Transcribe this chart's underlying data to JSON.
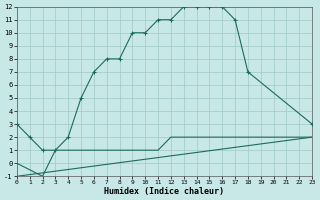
{
  "xlabel": "Humidex (Indice chaleur)",
  "bg_color": "#c8e8e8",
  "grid_color": "#a0c8c8",
  "line_color": "#1a6b5a",
  "xlim": [
    0,
    23
  ],
  "ylim": [
    -1,
    12
  ],
  "xticks": [
    0,
    1,
    2,
    3,
    4,
    5,
    6,
    7,
    8,
    9,
    10,
    11,
    12,
    13,
    14,
    15,
    16,
    17,
    18,
    19,
    20,
    21,
    22,
    23
  ],
  "yticks": [
    -1,
    0,
    1,
    2,
    3,
    4,
    5,
    6,
    7,
    8,
    9,
    10,
    11,
    12
  ],
  "curve1_x": [
    0,
    1,
    2,
    3,
    4,
    5,
    6,
    7,
    8,
    9,
    10,
    11,
    12,
    13,
    14,
    15,
    16,
    17,
    18,
    23
  ],
  "curve1_y": [
    3,
    2,
    1,
    1,
    2,
    5,
    7,
    8,
    8,
    10,
    10,
    11,
    11,
    12,
    12,
    12,
    12,
    11,
    7,
    3
  ],
  "curve2_x": [
    0,
    23
  ],
  "curve2_y": [
    -1,
    2
  ],
  "curve3_x": [
    0,
    2,
    3,
    4,
    5,
    6,
    7,
    8,
    9,
    10,
    11,
    12,
    13,
    14,
    15,
    16,
    17,
    18,
    19,
    20,
    21,
    22,
    23
  ],
  "curve3_y": [
    0,
    -1,
    1,
    1,
    1,
    1,
    1,
    1,
    1,
    1,
    1,
    2,
    2,
    2,
    2,
    2,
    2,
    2,
    2,
    2,
    2,
    2,
    2
  ]
}
